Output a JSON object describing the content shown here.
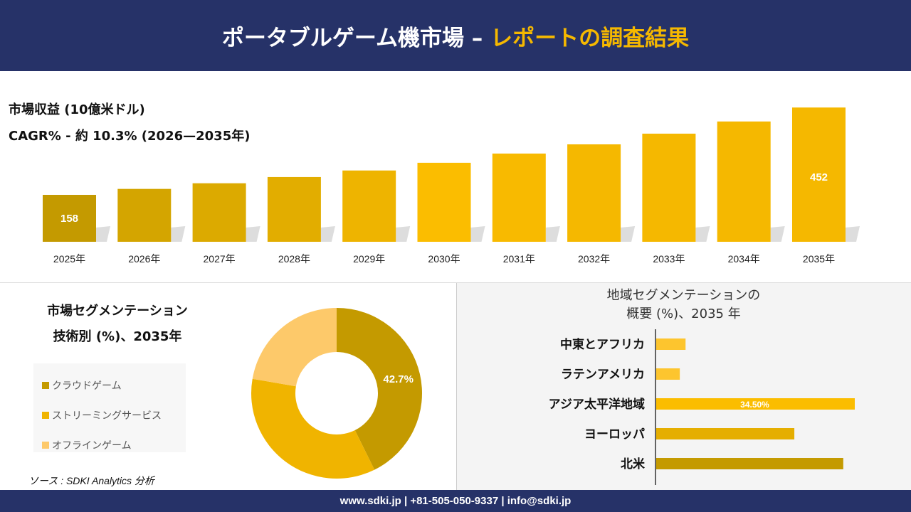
{
  "header": {
    "title_main": "ポータブルゲーム機市場 –",
    "title_accent": "レポートの調査結果"
  },
  "revenue": {
    "title": "市場収益 (10億米ドル)",
    "cagr": "CAGR% - 約 10.3% (2026—2035年)"
  },
  "chart_data": [
    {
      "type": "bar",
      "title": "市場収益 (10億米ドル)",
      "categories": [
        "2025年",
        "2026年",
        "2027年",
        "2028年",
        "2029年",
        "2030年",
        "2031年",
        "2032年",
        "2033年",
        "2034年",
        "2035年"
      ],
      "values": [
        158,
        178,
        197,
        218,
        240,
        266,
        297,
        328,
        364,
        405,
        452
      ],
      "data_labels": {
        "0": "158",
        "10": "452"
      },
      "colors": [
        "#c49a00",
        "#d4a500",
        "#dcaa00",
        "#e2ad00",
        "#eeb400",
        "#fbbd00",
        "#f8ba00",
        "#f5b800",
        "#f5b800",
        "#f5b800",
        "#f5b800"
      ]
    },
    {
      "type": "pie",
      "title": "市場セグメンテーション 技術別 (%)、2035年",
      "labels": [
        "クラウドゲーム",
        "ストリーミングサービス",
        "オフラインゲーム"
      ],
      "values": [
        42.7,
        35.0,
        22.3
      ],
      "colors": [
        "#c49a00",
        "#f0b400",
        "#fdc96a"
      ],
      "data_labels": {
        "0": "42.7%"
      },
      "donut": true
    },
    {
      "type": "bar",
      "orientation": "horizontal",
      "title": "地域セグメンテーションの 概要 (%)、2035 年",
      "categories": [
        "中東とアフリカ",
        "ラテンアメリカ",
        "アジア太平洋地域",
        "ヨーロッパ",
        "北米"
      ],
      "values": [
        5.1,
        4.1,
        34.5,
        24.0,
        32.5
      ],
      "data_labels": {
        "2": "34.50%"
      },
      "colors": [
        "#fdc52e",
        "#fdc52e",
        "#fbbd00",
        "#e5ae00",
        "#c49a00"
      ]
    }
  ],
  "segment": {
    "title1": "市場セグメンテーション",
    "title2": "技術別 (%)、2035年"
  },
  "region": {
    "title1": "地域セグメンテーションの",
    "title2": "概要 (%)、2035 年"
  },
  "source": "ソース : SDKI Analytics 分析",
  "footer": "www.sdki.jp | +81-505-050-9337 | info@sdki.jp"
}
